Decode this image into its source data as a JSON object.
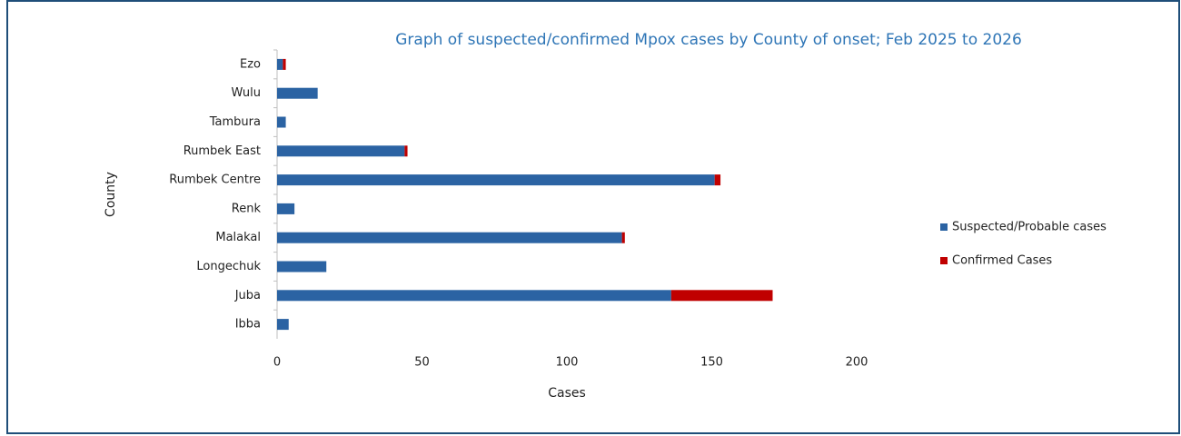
{
  "chart_data": {
    "type": "bar",
    "orientation": "horizontal",
    "stacked": true,
    "title": "Graph of suspected/confirmed Mpox cases by County of onset; Feb 2025  to 2026",
    "x_label": "Cases",
    "y_label": "County",
    "categories": [
      "Ezo",
      "Wulu",
      "Tambura",
      "Rumbek East",
      "Rumbek Centre",
      "Renk",
      "Malakal",
      "Longechuk",
      "Juba",
      "Ibba"
    ],
    "series": [
      {
        "name": "Suspected/Probable cases",
        "color": "#2b63a3",
        "values": [
          2,
          14,
          3,
          44,
          151,
          6,
          119,
          17,
          136,
          4
        ]
      },
      {
        "name": "Confirmed Cases",
        "color": "#c00000",
        "values": [
          1,
          0,
          0,
          1,
          2,
          0,
          1,
          0,
          35,
          0
        ]
      }
    ],
    "xlim": [
      0,
      200
    ],
    "xticks": [
      0,
      50,
      100,
      150,
      200
    ],
    "legend": "right",
    "title_color": "#2e75b6"
  }
}
